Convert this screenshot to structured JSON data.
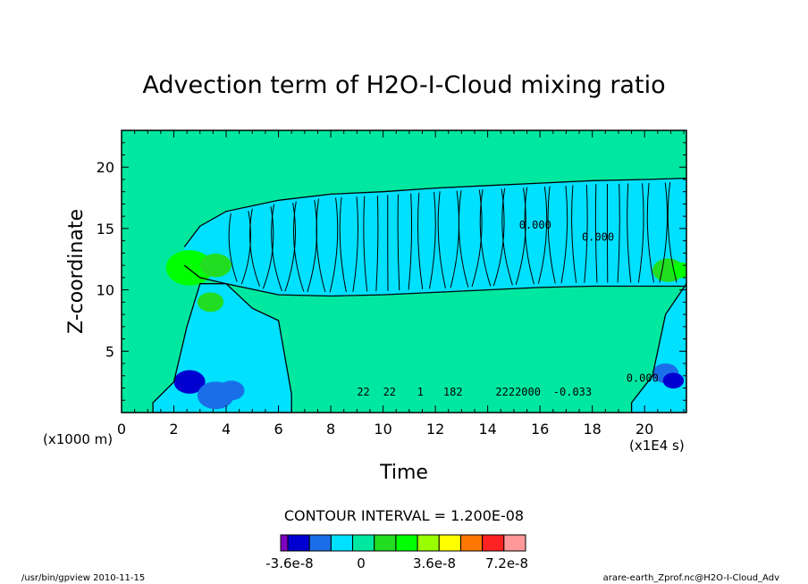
{
  "chart_data": {
    "type": "heatmap",
    "title": "Advection term of H2O-I-Cloud mixing ratio",
    "xlabel": "Time",
    "ylabel": "Z-coordinate",
    "x_unit_label": "(x1E4 s)",
    "y_unit_label": "(x1000 m)",
    "xlim": [
      0,
      21.6
    ],
    "ylim": [
      0,
      23
    ],
    "x_ticks": [
      0,
      2,
      4,
      6,
      8,
      10,
      12,
      14,
      16,
      18,
      20
    ],
    "x_tick_labels": [
      "0",
      "2",
      "4",
      "6",
      "8",
      "10",
      "12",
      "14",
      "16",
      "18",
      "20"
    ],
    "y_ticks": [
      5,
      10,
      15,
      20
    ],
    "y_tick_labels": [
      "5",
      "10",
      "15",
      "20"
    ],
    "contour_interval_text": "CONTOUR INTERVAL = 1.200E-08",
    "background_value": 0,
    "colorbar": {
      "colors": [
        "#8000c0",
        "#0000d0",
        "#1a6fe8",
        "#00e0ff",
        "#00e8a0",
        "#22dd22",
        "#00ff00",
        "#99ff00",
        "#ffff00",
        "#ff7700",
        "#ff2222",
        "#ff9999"
      ],
      "tick_labels": [
        "-3.6e-8",
        "0",
        "3.6e-8",
        "7.2e-8"
      ]
    },
    "cloud_layer": [
      {
        "t": 2.4,
        "bottom": 12.0,
        "top": 13.5
      },
      {
        "t": 3.0,
        "bottom": 11.0,
        "top": 15.2
      },
      {
        "t": 4.0,
        "bottom": 10.5,
        "top": 16.4
      },
      {
        "t": 6.0,
        "bottom": 9.6,
        "top": 17.3
      },
      {
        "t": 8.0,
        "bottom": 9.5,
        "top": 17.8
      },
      {
        "t": 10.0,
        "bottom": 9.6,
        "top": 18.0
      },
      {
        "t": 12.0,
        "bottom": 9.8,
        "top": 18.3
      },
      {
        "t": 14.0,
        "bottom": 10.0,
        "top": 18.5
      },
      {
        "t": 16.0,
        "bottom": 10.2,
        "top": 18.7
      },
      {
        "t": 18.0,
        "bottom": 10.3,
        "top": 18.9
      },
      {
        "t": 20.0,
        "bottom": 10.3,
        "top": 19.0
      },
      {
        "t": 21.6,
        "bottom": 10.3,
        "top": 19.1
      }
    ],
    "lower_cloud": [
      {
        "t": 1.2,
        "top": 0.8
      },
      {
        "t": 2.0,
        "top": 2.5
      },
      {
        "t": 2.5,
        "top": 7.0
      },
      {
        "t": 3.0,
        "top": 10.5
      },
      {
        "t": 4.0,
        "top": 10.5
      },
      {
        "t": 5.0,
        "top": 8.5
      },
      {
        "t": 6.0,
        "top": 7.5
      },
      {
        "t": 6.5,
        "top": 1.5
      }
    ],
    "right_cloud": [
      {
        "t": 19.5,
        "top": 0.8
      },
      {
        "t": 20.3,
        "top": 3.0
      },
      {
        "t": 20.8,
        "top": 8.0
      },
      {
        "t": 21.6,
        "top": 10.5
      }
    ],
    "hotspots": [
      {
        "t": 2.8,
        "z": 11.3,
        "color": "#ffff00",
        "r": 0.5
      },
      {
        "t": 2.6,
        "z": 11.8,
        "color": "#00ff00",
        "r": 0.9
      },
      {
        "t": 3.6,
        "z": 12.0,
        "color": "#22dd22",
        "r": 0.6
      },
      {
        "t": 3.4,
        "z": 9.0,
        "color": "#22dd22",
        "r": 0.5
      },
      {
        "t": 2.6,
        "z": 2.5,
        "color": "#0000d0",
        "r": 0.6
      },
      {
        "t": 3.6,
        "z": 1.4,
        "color": "#1a6fe8",
        "r": 0.7
      },
      {
        "t": 4.2,
        "z": 1.8,
        "color": "#1a6fe8",
        "r": 0.5
      },
      {
        "t": 20.9,
        "z": 11.6,
        "color": "#22dd22",
        "r": 0.6
      },
      {
        "t": 21.4,
        "z": 11.6,
        "color": "#00ff00",
        "r": 0.4
      },
      {
        "t": 20.8,
        "z": 3.2,
        "color": "#1a6fe8",
        "r": 0.5
      },
      {
        "t": 21.1,
        "z": 2.6,
        "color": "#0000d0",
        "r": 0.4
      }
    ],
    "contour_labels": [
      {
        "t": 9.0,
        "z": 1.4,
        "text": "22"
      },
      {
        "t": 10.0,
        "z": 1.4,
        "text": "22"
      },
      {
        "t": 11.3,
        "z": 1.4,
        "text": "1"
      },
      {
        "t": 12.3,
        "z": 1.4,
        "text": "182"
      },
      {
        "t": 14.3,
        "z": 1.4,
        "text": "2222000"
      },
      {
        "t": 16.5,
        "z": 1.4,
        "text": "-0.033"
      },
      {
        "t": 15.2,
        "z": 15.0,
        "text": "0.000"
      },
      {
        "t": 17.6,
        "z": 14.0,
        "text": "0.000"
      },
      {
        "t": 19.3,
        "z": 2.5,
        "text": "0.000"
      }
    ]
  },
  "footer": {
    "left": "/usr/bin/gpview  2010-11-15",
    "right": "arare-earth_Zprof.nc@H2O-I-Cloud_Adv"
  }
}
